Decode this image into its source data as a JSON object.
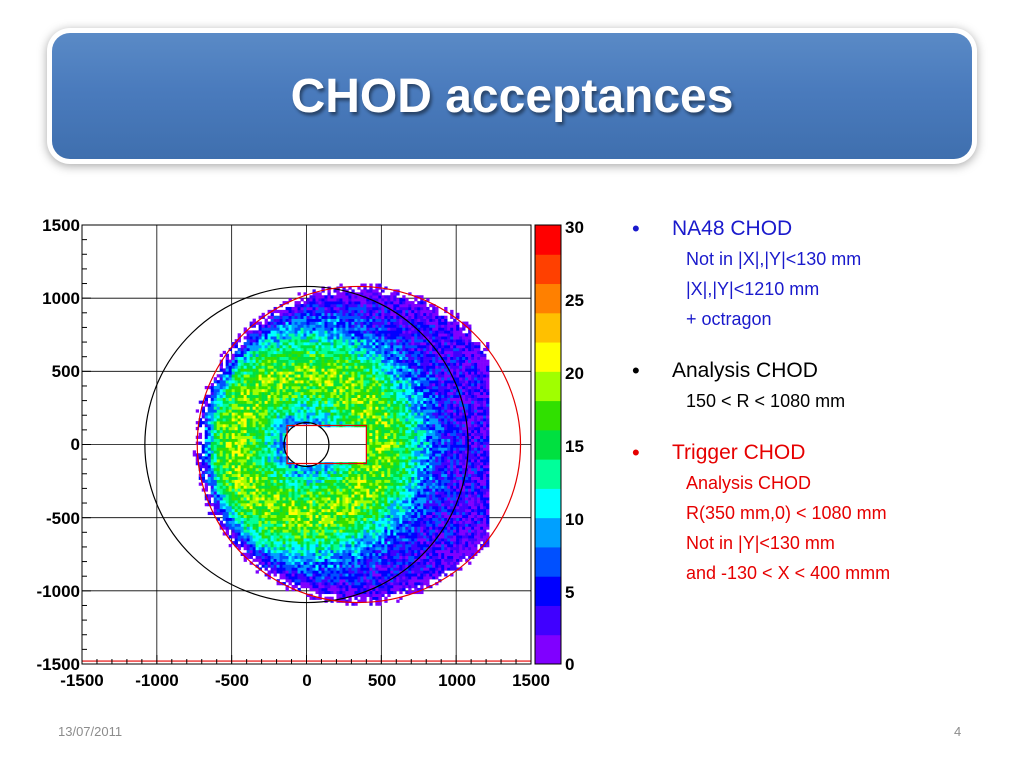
{
  "slide": {
    "title": "CHOD acceptances",
    "date": "13/07/2011",
    "page_number": "4"
  },
  "bullets": [
    {
      "heading": "NA48 CHOD",
      "color": "#1a1acc",
      "lines": [
        "Not in |X|,|Y|<130 mm",
        "|X|,|Y|<1210 mm",
        "+ octragon"
      ]
    },
    {
      "heading": "Analysis CHOD",
      "color": "#000000",
      "lines": [
        "150 < R < 1080 mm"
      ]
    },
    {
      "heading": "Trigger CHOD",
      "color": "#e60000",
      "lines": [
        "Analysis CHOD",
        "R(350 mm,0) < 1080 mm",
        "Not in |Y|<130 mm",
        "and -130 < X < 400 mmm"
      ]
    }
  ],
  "chart_data": {
    "type": "heatmap",
    "xlim": [
      -1500,
      1500
    ],
    "ylim": [
      -1500,
      1500
    ],
    "zlim": [
      0,
      30
    ],
    "x_ticks": [
      "-1500",
      "-1000",
      "-500",
      "0",
      "500",
      "1000",
      "1500"
    ],
    "y_ticks": [
      "1500",
      "1000",
      "500",
      "0",
      "-500",
      "-1000",
      "-1500"
    ],
    "z_ticks": [
      "30",
      "25",
      "20",
      "15",
      "10",
      "5",
      "0"
    ],
    "grid": true,
    "overlays": [
      {
        "shape": "circle",
        "center": [
          0,
          0
        ],
        "radius": 1080,
        "color": "#000000"
      },
      {
        "shape": "circle",
        "center": [
          350,
          0
        ],
        "radius": 1080,
        "color": "#e60000"
      },
      {
        "shape": "circle",
        "center": [
          0,
          0
        ],
        "radius": 150,
        "color": "#000000"
      },
      {
        "shape": "line",
        "y": -1480,
        "x_range": [
          -1500,
          1500
        ],
        "color": "#e60000"
      }
    ],
    "data_region": {
      "rmin": 150,
      "rmax_trigger_center": [
        350,
        0
      ],
      "rmax": 1080,
      "x_max": 1210,
      "hole": {
        "x_range": [
          -130,
          400
        ],
        "y_range": [
          -130,
          130
        ]
      }
    },
    "palette": [
      "#8000ff",
      "#4000ff",
      "#0000ff",
      "#0050ff",
      "#00a0ff",
      "#00ffff",
      "#00ff9a",
      "#00e040",
      "#30e000",
      "#a0ff00",
      "#ffff00",
      "#ffc000",
      "#ff8000",
      "#ff4000",
      "#ff0000"
    ]
  }
}
